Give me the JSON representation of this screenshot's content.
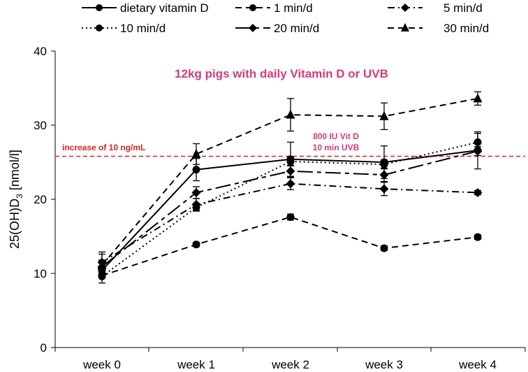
{
  "chart_data": {
    "type": "line",
    "title": "12kg pigs with daily Vitamin D or UVB",
    "xlabel": "",
    "ylabel": "25(OH)D",
    "ylabel_sub": "3",
    "ylabel_unit": " [nmol/l]",
    "categories": [
      "week 0",
      "week 1",
      "week 2",
      "week 3",
      "week 4"
    ],
    "ylim": [
      0,
      40
    ],
    "yticks": [
      0,
      10,
      20,
      30,
      40
    ],
    "legend_position": "top",
    "series": [
      {
        "name": "dietary vitamin D",
        "marker": "circle",
        "dash": "solid",
        "values": [
          10.4,
          24.0,
          25.4,
          25.0,
          26.6
        ],
        "errors": [
          1.0,
          1.5,
          2.3,
          2.2,
          2.5
        ]
      },
      {
        "name": "1 min/d",
        "marker": "circle",
        "dash": "dashed",
        "values": [
          9.7,
          13.9,
          17.6,
          13.4,
          14.9
        ],
        "errors": [
          0.3,
          0.3,
          0.4,
          0.3,
          0.3
        ]
      },
      {
        "name": "5 min/d",
        "marker": "diamond",
        "dash": "dashdot",
        "values": [
          11.5,
          19.3,
          22.1,
          21.4,
          20.9
        ],
        "errors": [
          1.4,
          0.8,
          0.8,
          0.9,
          0.3
        ]
      },
      {
        "name": "10 min/d",
        "marker": "circle",
        "dash": "dotted",
        "values": [
          9.6,
          18.9,
          25.1,
          24.7,
          27.7
        ],
        "errors": [
          0.9,
          0.5,
          0.6,
          0.6,
          1.2
        ]
      },
      {
        "name": "20 min/d",
        "marker": "diamond",
        "dash": "longdash",
        "values": [
          10.9,
          20.9,
          23.8,
          23.3,
          26.5
        ],
        "errors": [
          0.9,
          0.8,
          0.8,
          0.9,
          0.6
        ]
      },
      {
        "name": "30 min/d",
        "marker": "triangle",
        "dash": "dashed",
        "values": [
          11.1,
          26.1,
          31.4,
          31.2,
          33.6
        ],
        "errors": [
          1.5,
          1.4,
          2.2,
          1.8,
          0.9
        ]
      }
    ],
    "reference_line": {
      "y": 25.8,
      "label": "increase of 10 ng/mL",
      "color": "#e02020"
    },
    "annotation": {
      "lines": [
        "800 IU Vit D",
        "10 min UVB"
      ],
      "color": "#d63a7a"
    },
    "title_color": "#d63a7a"
  }
}
